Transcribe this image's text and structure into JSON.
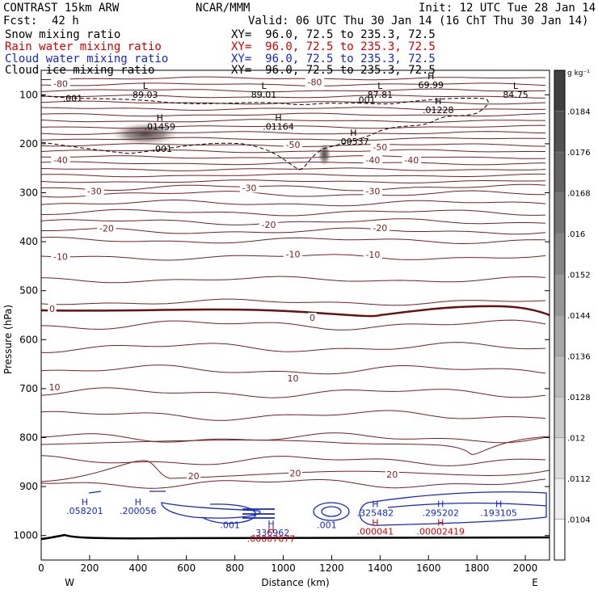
{
  "header": {
    "model": "CONTRAST 15km ARW",
    "org": "NCAR/MMM",
    "init": "Init: 12 UTC Tue 28 Jan 14",
    "fcst_label": "Fcst:",
    "fcst_value": "42 h",
    "valid": "Valid: 06 UTC Thu 30 Jan 14 (16 ChT Thu 30 Jan 14)"
  },
  "fields": [
    {
      "name": "Snow mixing ratio",
      "xy": "XY=  96.0, 72.5 to 235.3, 72.5",
      "color": "#000000"
    },
    {
      "name": "Rain water mixing ratio",
      "xy": "XY=  96.0, 72.5 to 235.3, 72.5",
      "color": "#d40000"
    },
    {
      "name": "Cloud water mixing ratio",
      "xy": "XY=  96.0, 72.5 to 235.3, 72.5",
      "color": "#1428c8"
    },
    {
      "name": "Cloud ice mixing ratio",
      "xy": "XY=  96.0, 72.5 to 235.3, 72.5",
      "color": "#000000"
    }
  ],
  "chart_data": {
    "type": "cross-section contour",
    "xlabel": "Distance (km)",
    "ylabel": "Pressure (hPa)",
    "xlim": [
      0,
      2100
    ],
    "ylim": [
      1050,
      50
    ],
    "x_ticks": [
      0,
      200,
      400,
      600,
      800,
      1000,
      1200,
      1400,
      1600,
      1800,
      2000
    ],
    "y_ticks": [
      100,
      200,
      300,
      400,
      500,
      600,
      700,
      800,
      900,
      1000
    ],
    "endpoints": {
      "left": "W",
      "right": "E"
    },
    "colorbar": {
      "unit": "g kg⁻¹",
      "tick_labels": [
        ".0104",
        ".0112",
        ".012",
        ".0128",
        ".0136",
        ".0144",
        ".0152",
        ".016",
        ".0168",
        ".0176",
        ".0184"
      ],
      "range": [
        0.0096,
        0.0192
      ]
    },
    "temperature_labels": [
      {
        "text": "-80",
        "x": 80,
        "p": 77
      },
      {
        "text": "-80",
        "x": 1130,
        "p": 74
      },
      {
        "text": "-50",
        "x": 1040,
        "p": 202
      },
      {
        "text": "-50",
        "x": 1400,
        "p": 207
      },
      {
        "text": "-40",
        "x": 80,
        "p": 233
      },
      {
        "text": "-40",
        "x": 1370,
        "p": 233
      },
      {
        "text": "-40",
        "x": 1530,
        "p": 233
      },
      {
        "text": "-30",
        "x": 220,
        "p": 297
      },
      {
        "text": "-30",
        "x": 860,
        "p": 290
      },
      {
        "text": "-30",
        "x": 1370,
        "p": 297
      },
      {
        "text": "-20",
        "x": 270,
        "p": 373
      },
      {
        "text": "-20",
        "x": 940,
        "p": 365
      },
      {
        "text": "-20",
        "x": 1400,
        "p": 372
      },
      {
        "text": "-10",
        "x": 80,
        "p": 430
      },
      {
        "text": "-10",
        "x": 1040,
        "p": 425
      },
      {
        "text": "-10",
        "x": 1370,
        "p": 426
      },
      {
        "text": "0",
        "x": 45,
        "p": 537
      },
      {
        "text": "0",
        "x": 1120,
        "p": 555
      },
      {
        "text": "10",
        "x": 55,
        "p": 697
      },
      {
        "text": "10",
        "x": 1040,
        "p": 679
      },
      {
        "text": "20",
        "x": 630,
        "p": 878
      },
      {
        "text": "20",
        "x": 1050,
        "p": 873
      },
      {
        "text": "20",
        "x": 1450,
        "p": 875
      }
    ],
    "minmax_markers": [
      {
        "mark": "L",
        "value": "89.03",
        "x": 430,
        "p": 88,
        "color": "#000000"
      },
      {
        "mark": "L",
        "value": "89.01",
        "x": 920,
        "p": 88,
        "color": "#000000"
      },
      {
        "mark": "L",
        "value": "87.81",
        "x": 1400,
        "p": 88,
        "color": "#000000"
      },
      {
        "mark": "L",
        "value": "84.75",
        "x": 1960,
        "p": 88,
        "color": "#000000"
      },
      {
        "mark": "H",
        "value": "69.99",
        "x": 1610,
        "p": 68,
        "color": "#000000"
      },
      {
        "mark": "H",
        "value": ".01459",
        "x": 490,
        "p": 153,
        "color": "#000000"
      },
      {
        "mark": "H",
        "value": ".01164",
        "x": 980,
        "p": 153,
        "color": "#000000"
      },
      {
        "mark": "H",
        "value": ".00537",
        "x": 1290,
        "p": 184,
        "color": "#000000"
      },
      {
        "mark": "H",
        "value": ".01228",
        "x": 1640,
        "p": 119,
        "color": "#000000"
      },
      {
        "mark": "H",
        "value": ".058201",
        "x": 180,
        "p": 938,
        "color": "#1428c8"
      },
      {
        "mark": "H",
        "value": ".200056",
        "x": 400,
        "p": 938,
        "color": "#1428c8"
      },
      {
        "mark": "H",
        "value": ".336962",
        "x": 950,
        "p": 982,
        "color": "#1428c8"
      },
      {
        "mark": "H",
        "value": ".325482",
        "x": 1380,
        "p": 942,
        "color": "#1428c8"
      },
      {
        "mark": "H",
        "value": ".295202",
        "x": 1650,
        "p": 942,
        "color": "#1428c8"
      },
      {
        "mark": "H",
        "value": ".193105",
        "x": 1890,
        "p": 942,
        "color": "#1428c8"
      },
      {
        "mark": "H",
        "value": ".00007677",
        "x": 950,
        "p": 995,
        "color": "#d40000"
      },
      {
        "mark": "H",
        "value": ".000041",
        "x": 1380,
        "p": 980,
        "color": "#d40000"
      },
      {
        "mark": "H",
        "value": ".00002419",
        "x": 1650,
        "p": 980,
        "color": "#d40000"
      }
    ],
    "cloud_ice_labels": [
      {
        "text": ".001",
        "x": 130,
        "p": 107
      },
      {
        "text": ".001",
        "x": 500,
        "p": 210
      },
      {
        "text": ".001",
        "x": 1340,
        "p": 110
      }
    ],
    "cloud_water_labels": [
      {
        "text": ".001",
        "x": 780,
        "p": 978
      },
      {
        "text": ".001",
        "x": 1180,
        "p": 978
      }
    ],
    "snow_maxima": [
      {
        "x": 430,
        "p": 180,
        "value": 0.015
      },
      {
        "x": 1170,
        "p": 222,
        "value": 0.012
      }
    ]
  }
}
